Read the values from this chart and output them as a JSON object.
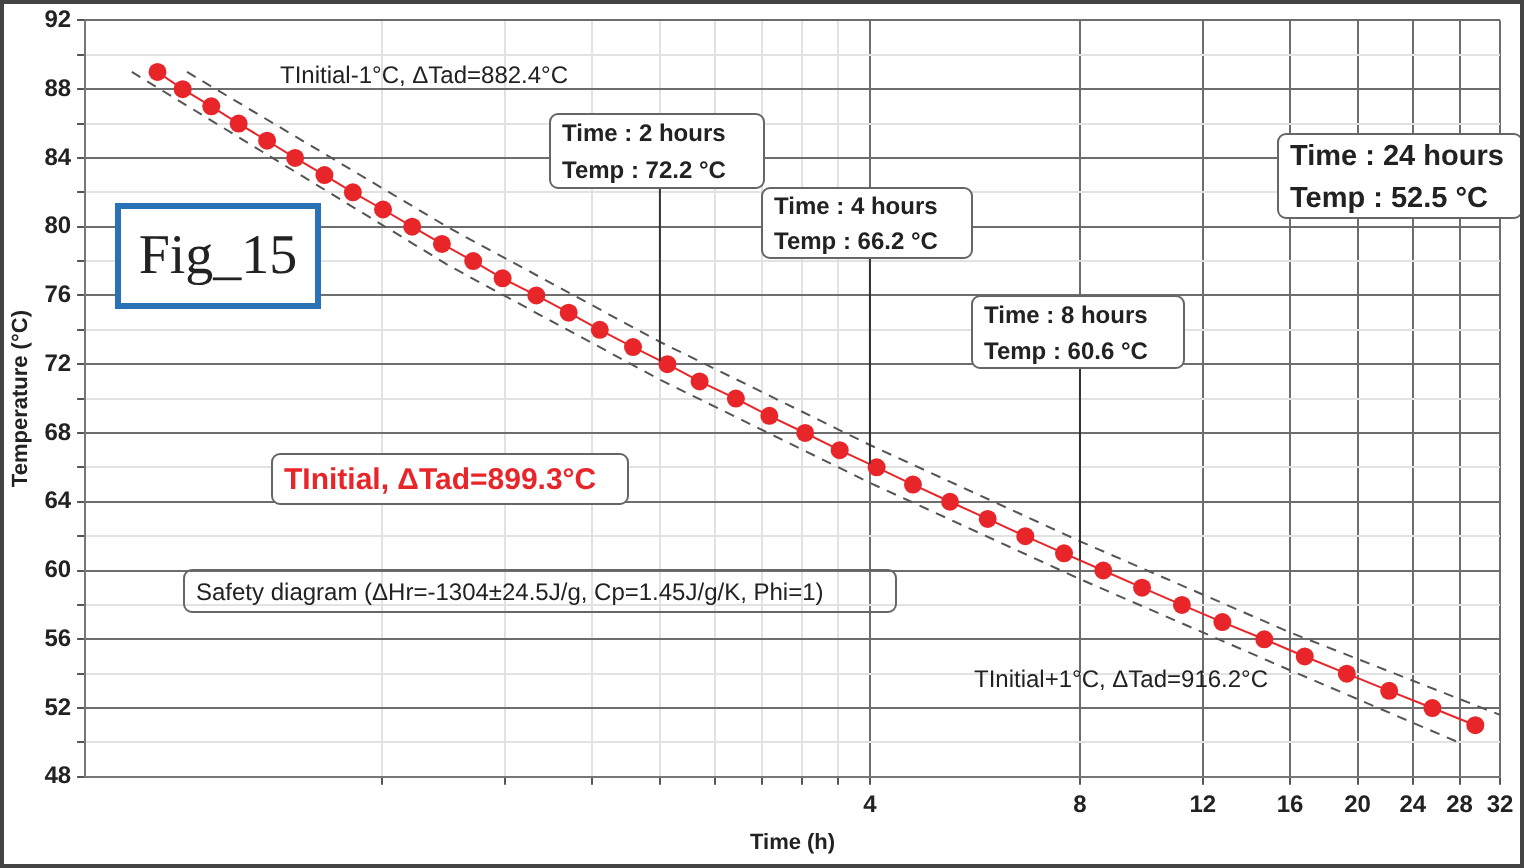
{
  "chart_data": {
    "type": "line",
    "xlabel": "Time (h)",
    "ylabel": "Temperature (°C)",
    "log": "x",
    "xlim": [
      0.3,
      32
    ],
    "ylim": [
      48,
      92
    ],
    "xticks": [
      {
        "value": 0.8,
        "label": null
      },
      {
        "value": 1.2,
        "label": null
      },
      {
        "value": 1.6,
        "label": null
      },
      {
        "value": 2,
        "label": null
      },
      {
        "value": 2.4,
        "label": null
      },
      {
        "value": 2.8,
        "label": null
      },
      {
        "value": 3.2,
        "label": null
      },
      {
        "value": 3.6,
        "label": null
      },
      4,
      8,
      12,
      16,
      20,
      24,
      28,
      32
    ],
    "yticks": [
      48,
      {
        "value": 50,
        "label": null
      },
      52,
      {
        "value": 54,
        "label": null
      },
      56,
      {
        "value": 58,
        "label": null
      },
      60,
      {
        "value": 62,
        "label": null
      },
      64,
      {
        "value": 66,
        "label": null
      },
      68,
      {
        "value": 70,
        "label": null
      },
      72,
      {
        "value": 74,
        "label": null
      },
      76,
      {
        "value": 78,
        "label": null
      },
      80,
      {
        "value": 82,
        "label": null
      },
      84,
      {
        "value": 86,
        "label": null
      },
      88,
      {
        "value": 90,
        "label": null
      },
      92
    ],
    "grid": true,
    "legend": false,
    "series": [
      {
        "color": "#e8262a",
        "marker": "circle",
        "line_style": "solid",
        "x": [
          0.381,
          0.414,
          0.455,
          0.498,
          0.547,
          0.6,
          0.661,
          0.726,
          0.802,
          0.883,
          0.974,
          1.08,
          1.19,
          1.33,
          1.48,
          1.64,
          1.83,
          2.05,
          2.28,
          2.57,
          2.87,
          3.23,
          3.62,
          4.09,
          4.61,
          5.21,
          5.9,
          6.68,
          7.59,
          8.64,
          9.82,
          11.2,
          12.8,
          14.7,
          16.8,
          19.3,
          22.2,
          25.6,
          29.5
        ],
        "values": [
          89,
          88,
          87,
          86,
          85,
          84,
          83,
          82,
          81,
          80,
          79,
          78,
          77,
          76,
          75,
          74,
          73,
          72,
          71,
          70,
          69,
          68,
          67,
          66,
          65,
          64,
          63,
          62,
          61,
          60,
          59,
          58,
          57,
          56,
          55,
          54,
          53,
          52,
          51
        ]
      },
      {
        "color": "#555555",
        "marker": "none",
        "line_style": "dashed",
        "x": [
          0.42,
          1,
          2,
          4,
          8,
          16,
          32
        ],
        "values": [
          89,
          79.9,
          73.3,
          67.3,
          61.7,
          56.4,
          51.6
        ]
      },
      {
        "color": "#555555",
        "marker": "none",
        "line_style": "dashed",
        "x": [
          0.35,
          1,
          2,
          4,
          8,
          16,
          28.3
        ],
        "values": [
          89,
          77.7,
          71.1,
          65.1,
          59.5,
          54.2,
          49.9
        ]
      }
    ],
    "annotations": [
      "TInitial-1°C, ΔTad=882.4°C",
      {
        "text": "Time : 2 hours\nTemp : 72.2 °C",
        "x": 2,
        "y": 72.2
      },
      {
        "text": "Time : 4 hours\nTemp : 66.2 °C",
        "x": 4,
        "y": 66.2
      },
      {
        "text": "Time : 8 hours\nTemp : 60.6 °C",
        "x": 8,
        "y": 60.6
      },
      "Time : 24 hours\nTemp : 52.5 °C",
      "Fig_15",
      "TInitial, ΔTad=899.3°C",
      "Safety diagram (ΔHr=-1304±24.5J/g, Cp=1.45J/g/K, Phi=1)",
      "TInitial+1°C, ΔTad=916.2°C"
    ]
  }
}
